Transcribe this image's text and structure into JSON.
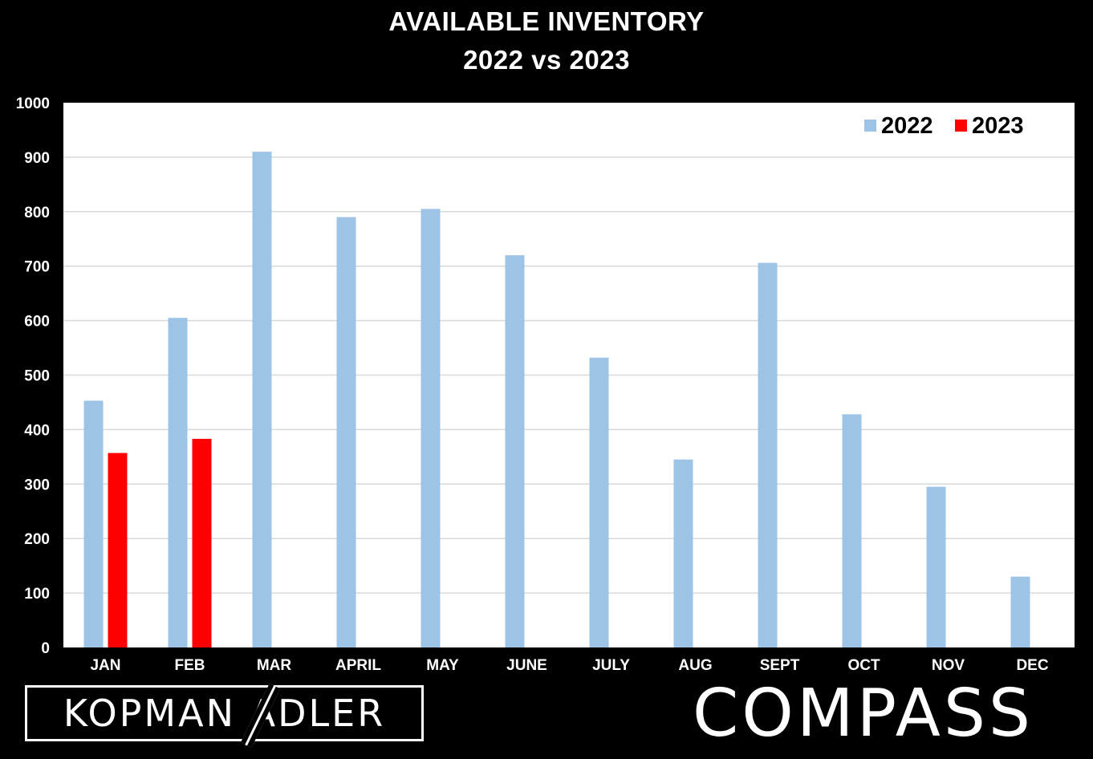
{
  "chart_data": {
    "type": "bar",
    "title_lines": [
      "AVAILABLE INVENTORY",
      "2022 vs 2023"
    ],
    "categories": [
      "JAN",
      "FEB",
      "MAR",
      "APRIL",
      "MAY",
      "JUNE",
      "JULY",
      "AUG",
      "SEPT",
      "OCT",
      "NOV",
      "DEC"
    ],
    "series": [
      {
        "name": "2022",
        "color": "#9DC3E6",
        "values": [
          453,
          605,
          910,
          790,
          805,
          720,
          532,
          345,
          706,
          428,
          295,
          130
        ]
      },
      {
        "name": "2023",
        "color": "#FF0000",
        "values": [
          357,
          383,
          null,
          null,
          null,
          null,
          null,
          null,
          null,
          null,
          null,
          null
        ]
      }
    ],
    "yticks": [
      "0",
      "100",
      "200",
      "300",
      "400",
      "500",
      "600",
      "700",
      "800",
      "900",
      "1000"
    ],
    "ylim": [
      0,
      1000
    ],
    "grid": true,
    "legend": "top-right"
  },
  "logos": {
    "left_text": "KOPMAN  ADLER",
    "right_text": "COMPASS"
  }
}
